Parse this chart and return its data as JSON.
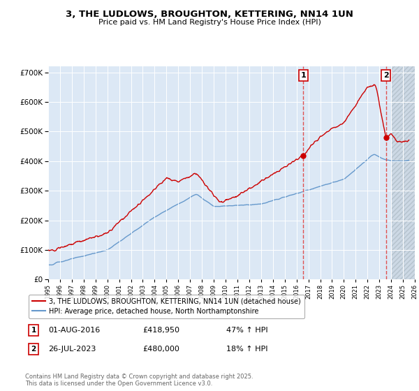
{
  "title": "3, THE LUDLOWS, BROUGHTON, KETTERING, NN14 1UN",
  "subtitle": "Price paid vs. HM Land Registry's House Price Index (HPI)",
  "legend_line1": "3, THE LUDLOWS, BROUGHTON, KETTERING, NN14 1UN (detached house)",
  "legend_line2": "HPI: Average price, detached house, North Northamptonshire",
  "annotation1_label": "1",
  "annotation1_date": "01-AUG-2016",
  "annotation1_price": "£418,950",
  "annotation1_hpi": "47% ↑ HPI",
  "annotation1_year": 2016.58,
  "annotation1_value": 418950,
  "annotation2_label": "2",
  "annotation2_date": "26-JUL-2023",
  "annotation2_price": "£480,000",
  "annotation2_hpi": "18% ↑ HPI",
  "annotation2_year": 2023.56,
  "annotation2_value": 480000,
  "footer": "Contains HM Land Registry data © Crown copyright and database right 2025.\nThis data is licensed under the Open Government Licence v3.0.",
  "red_color": "#cc0000",
  "blue_color": "#6699cc",
  "bg_color": "#dce8f5",
  "hatch_color": "#c8d8e8",
  "ylim": [
    0,
    720000
  ],
  "xlim_start": 1995,
  "xlim_end": 2026,
  "future_start": 2024.0
}
